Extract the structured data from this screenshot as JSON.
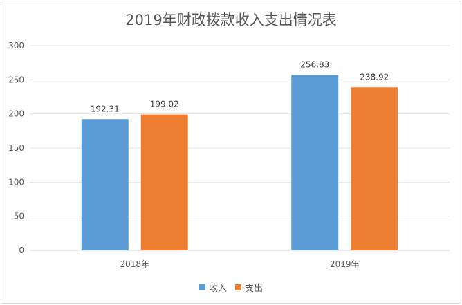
{
  "chart_data": {
    "type": "bar",
    "title": "2019年财政拨款收入支出情况表",
    "categories": [
      "2018年",
      "2019年"
    ],
    "series": [
      {
        "name": "收入",
        "color": "#5b9bd5",
        "values": [
          192.31,
          256.83
        ]
      },
      {
        "name": "支出",
        "color": "#ed7d31",
        "values": [
          199.02,
          238.92
        ]
      }
    ],
    "data_labels": [
      [
        "192.31",
        "256.83"
      ],
      [
        "199.02",
        "238.92"
      ]
    ],
    "ylim": [
      0,
      300
    ],
    "yticks": [
      0,
      50,
      100,
      150,
      200,
      250,
      300
    ],
    "grid": true,
    "legend_position": "bottom"
  }
}
